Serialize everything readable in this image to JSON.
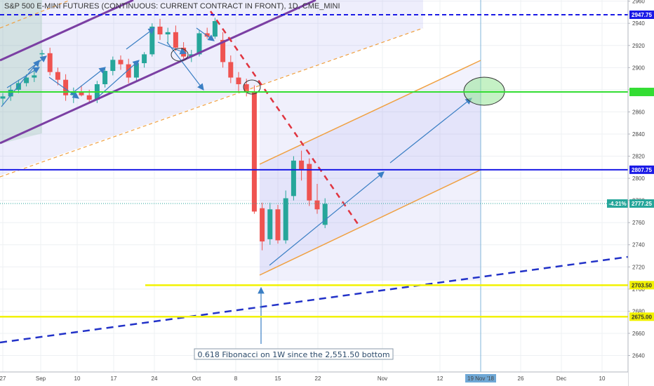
{
  "title": "S&P 500 E-MINI FUTURES (CONTINUOUS: CURRENT CONTRACT IN FRONT), 1D, CME_MINI",
  "chart_data": {
    "type": "candlestick",
    "y_ticks": [
      2640,
      2660,
      2680,
      2700,
      2720,
      2740,
      2760,
      2780,
      2800,
      2820,
      2840,
      2860,
      2880,
      2900,
      2920,
      2940,
      2960
    ],
    "x_ticks": [
      "27",
      "Sep",
      "10",
      "17",
      "24",
      "Oct",
      "8",
      "15",
      "22",
      "Nov",
      "12",
      "19 Nov '18",
      "26",
      "Dec",
      "10"
    ],
    "ylim": [
      2625,
      2963
    ],
    "candles": [
      {
        "o": 2872,
        "h": 2877,
        "l": 2866,
        "c": 2874
      },
      {
        "o": 2874,
        "h": 2884,
        "l": 2870,
        "c": 2880
      },
      {
        "o": 2880,
        "h": 2889,
        "l": 2877,
        "c": 2886
      },
      {
        "o": 2886,
        "h": 2894,
        "l": 2883,
        "c": 2891
      },
      {
        "o": 2891,
        "h": 2898,
        "l": 2887,
        "c": 2893
      },
      {
        "o": 2912,
        "h": 2916,
        "l": 2908,
        "c": 2913
      },
      {
        "o": 2913,
        "h": 2918,
        "l": 2893,
        "c": 2896
      },
      {
        "o": 2896,
        "h": 2900,
        "l": 2884,
        "c": 2889
      },
      {
        "o": 2889,
        "h": 2894,
        "l": 2870,
        "c": 2875
      },
      {
        "o": 2875,
        "h": 2882,
        "l": 2868,
        "c": 2878
      },
      {
        "o": 2878,
        "h": 2884,
        "l": 2874,
        "c": 2875
      },
      {
        "o": 2875,
        "h": 2880,
        "l": 2868,
        "c": 2871
      },
      {
        "o": 2871,
        "h": 2888,
        "l": 2868,
        "c": 2885
      },
      {
        "o": 2885,
        "h": 2900,
        "l": 2882,
        "c": 2897
      },
      {
        "o": 2897,
        "h": 2910,
        "l": 2893,
        "c": 2907
      },
      {
        "o": 2907,
        "h": 2911,
        "l": 2898,
        "c": 2903
      },
      {
        "o": 2903,
        "h": 2908,
        "l": 2886,
        "c": 2891
      },
      {
        "o": 2891,
        "h": 2906,
        "l": 2888,
        "c": 2904
      },
      {
        "o": 2904,
        "h": 2914,
        "l": 2900,
        "c": 2912
      },
      {
        "o": 2912,
        "h": 2940,
        "l": 2910,
        "c": 2937
      },
      {
        "o": 2937,
        "h": 2944,
        "l": 2925,
        "c": 2930
      },
      {
        "o": 2930,
        "h": 2936,
        "l": 2921,
        "c": 2932
      },
      {
        "o": 2932,
        "h": 2938,
        "l": 2915,
        "c": 2918
      },
      {
        "o": 2918,
        "h": 2923,
        "l": 2908,
        "c": 2910
      },
      {
        "o": 2910,
        "h": 2916,
        "l": 2905,
        "c": 2912
      },
      {
        "o": 2912,
        "h": 2934,
        "l": 2910,
        "c": 2931
      },
      {
        "o": 2931,
        "h": 2936,
        "l": 2926,
        "c": 2928
      },
      {
        "o": 2928,
        "h": 2945,
        "l": 2926,
        "c": 2942
      },
      {
        "o": 2925,
        "h": 2932,
        "l": 2900,
        "c": 2905
      },
      {
        "o": 2905,
        "h": 2911,
        "l": 2886,
        "c": 2891
      },
      {
        "o": 2891,
        "h": 2896,
        "l": 2878,
        "c": 2885
      },
      {
        "o": 2885,
        "h": 2890,
        "l": 2874,
        "c": 2878
      },
      {
        "o": 2878,
        "h": 2884,
        "l": 2768,
        "c": 2770
      },
      {
        "o": 2773,
        "h": 2778,
        "l": 2735,
        "c": 2743
      },
      {
        "o": 2745,
        "h": 2778,
        "l": 2740,
        "c": 2772
      },
      {
        "o": 2772,
        "h": 2776,
        "l": 2741,
        "c": 2744
      },
      {
        "o": 2744,
        "h": 2789,
        "l": 2741,
        "c": 2782
      },
      {
        "o": 2784,
        "h": 2820,
        "l": 2780,
        "c": 2816
      },
      {
        "o": 2816,
        "h": 2825,
        "l": 2798,
        "c": 2808
      },
      {
        "o": 2813,
        "h": 2818,
        "l": 2775,
        "c": 2780
      },
      {
        "o": 2780,
        "h": 2795,
        "l": 2768,
        "c": 2772
      },
      {
        "o": 2758,
        "h": 2782,
        "l": 2755,
        "c": 2777
      }
    ],
    "hlines": [
      {
        "price": 2947.75,
        "color": "#1a1ae6",
        "style": "dashed",
        "label": "2947.75"
      },
      {
        "price": 2878,
        "color": "#33dd33",
        "style": "solid",
        "label": ""
      },
      {
        "price": 2807.75,
        "color": "#1a1ae6",
        "style": "solid",
        "label": "2807.75"
      },
      {
        "price": 2703.5,
        "color": "#f2f200",
        "style": "solid",
        "label": "2703.50"
      },
      {
        "price": 2675,
        "color": "#f2f200",
        "style": "solid",
        "label": "2675.00"
      }
    ],
    "last_price": {
      "value": 2777.25,
      "label": "2777.25",
      "change": "-4.21%"
    },
    "annotation": "0.618 Fibonacci on 1W since the 2,551.50 bottom"
  },
  "colors": {
    "up": "#26a69a",
    "down": "#ef5350",
    "grid": "#eef0f3",
    "axis": "#b2b5be"
  }
}
